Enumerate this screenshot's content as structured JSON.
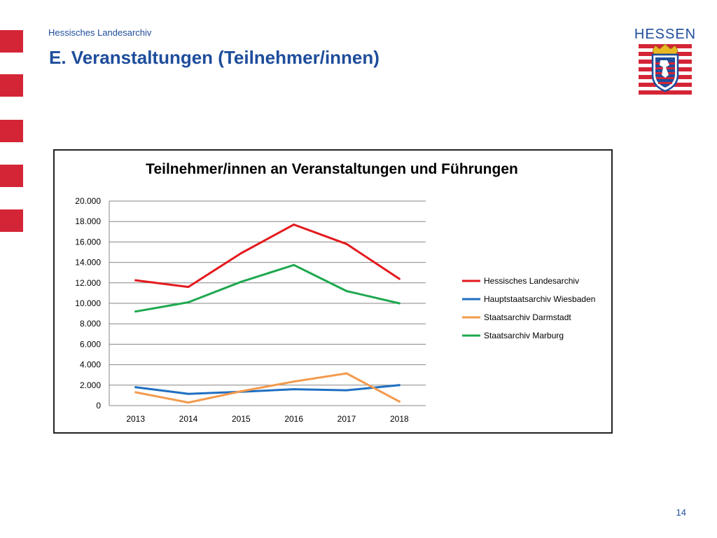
{
  "header": {
    "organization": "Hessisches Landesarchiv",
    "title": "E. Veranstaltungen (Teilnehmer/innen)",
    "logo_text": "HESSEN"
  },
  "colors": {
    "accent_red": "#d42536",
    "brand_blue": "#1e4d9b"
  },
  "chart_data": {
    "type": "line",
    "title": "Teilnehmer/innen an Veranstaltungen und Führungen",
    "xlabel": "",
    "ylabel": "",
    "categories": [
      "2013",
      "2014",
      "2015",
      "2016",
      "2017",
      "2018"
    ],
    "ylim": [
      0,
      20000
    ],
    "yticks": [
      0,
      2000,
      4000,
      6000,
      8000,
      10000,
      12000,
      14000,
      16000,
      18000,
      20000
    ],
    "ytick_labels": [
      "0",
      "2.000",
      "4.000",
      "6.000",
      "8.000",
      "10.000",
      "12.000",
      "14.000",
      "16.000",
      "18.000",
      "20.000"
    ],
    "grid": true,
    "legend_position": "right",
    "series": [
      {
        "name": "Hessisches Landesarchiv",
        "color": "#e3191d",
        "values": [
          12250,
          11600,
          14900,
          17700,
          15800,
          12400
        ]
      },
      {
        "name": "Hauptstaatsarchiv Wiesbaden",
        "color": "#1f6fc1",
        "values": [
          1800,
          1150,
          1350,
          1600,
          1500,
          2000
        ]
      },
      {
        "name": "Staatsarchiv Darmstadt",
        "color": "#f39a4d",
        "values": [
          1300,
          300,
          1400,
          2350,
          3150,
          400
        ]
      },
      {
        "name": "Staatsarchiv Marburg",
        "color": "#1fa84f",
        "values": [
          9200,
          10100,
          12100,
          13750,
          11200,
          10000
        ]
      }
    ]
  },
  "footer": {
    "page_number": "14"
  }
}
